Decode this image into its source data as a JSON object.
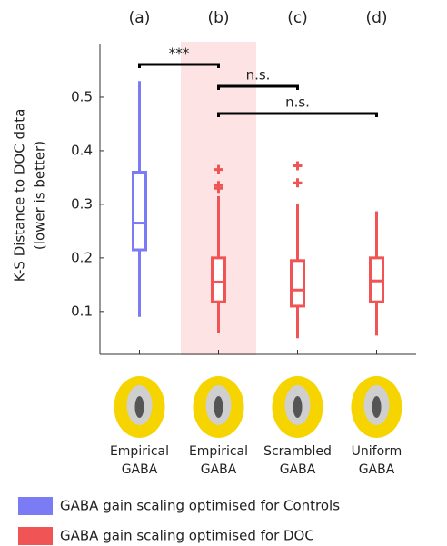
{
  "chart_data": {
    "type": "box",
    "panels": [
      "(a)",
      "(b)",
      "(c)",
      "(d)"
    ],
    "categories": [
      "Empirical GABA",
      "Empirical GABA",
      "Scrambled GABA",
      "Uniform GABA"
    ],
    "ylabel": [
      "K-S Distance to DOC data",
      "(lower is better)"
    ],
    "ylim": [
      0.02,
      0.6
    ],
    "yticks": [
      0.1,
      0.2,
      0.3,
      0.4,
      0.5
    ],
    "annotations": [
      "***",
      "n.s.",
      "n.s."
    ],
    "series": [
      {
        "name": "GABA gain scaling optimised for Controls",
        "color": "#7b7bf5",
        "min": [
          0.09,
          null,
          null,
          null
        ],
        "q1": [
          0.215,
          null,
          null,
          null
        ],
        "median": [
          0.265,
          null,
          null,
          null
        ],
        "q3": [
          0.36,
          null,
          null,
          null
        ],
        "max": [
          0.53,
          null,
          null,
          null
        ],
        "outliers": [
          [],
          [],
          [],
          []
        ]
      },
      {
        "name": "GABA gain scaling optimised for DOC",
        "color": "#f05454",
        "min": [
          null,
          0.06,
          0.05,
          0.055
        ],
        "q1": [
          null,
          0.118,
          0.11,
          0.118
        ],
        "median": [
          null,
          0.155,
          0.14,
          0.157
        ],
        "q3": [
          null,
          0.2,
          0.195,
          0.2
        ],
        "max": [
          null,
          0.315,
          0.3,
          0.287
        ],
        "outliers": [
          [],
          [
            0.365,
            0.335,
            0.33
          ],
          [
            0.372,
            0.34
          ],
          []
        ]
      }
    ]
  }
}
